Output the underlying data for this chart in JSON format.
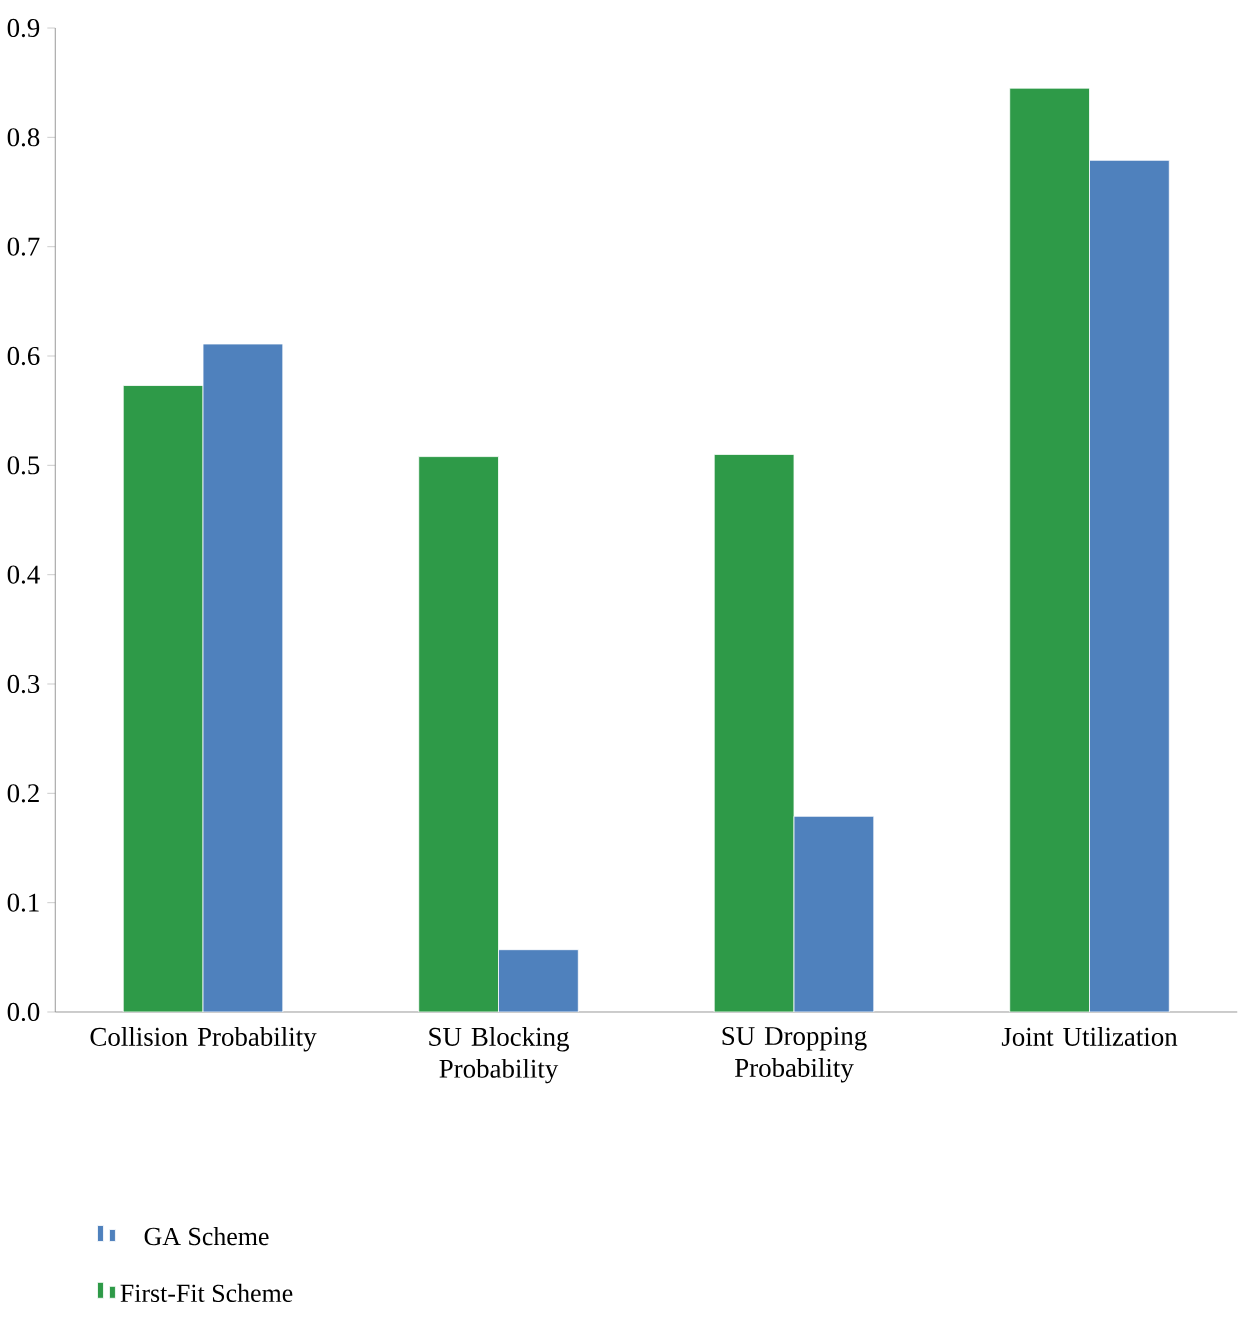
{
  "chart_data": {
    "type": "bar",
    "categories": [
      "Collision Probability",
      "SU Blocking Probability",
      "SU Dropping Probability",
      "Joint Utilization"
    ],
    "series": [
      {
        "name": "First-Fit Scheme",
        "color": "#2e9a48",
        "values": [
          0.573,
          0.508,
          0.51,
          0.845
        ]
      },
      {
        "name": "GA Scheme",
        "color": "#4f81bd",
        "values": [
          0.611,
          0.057,
          0.179,
          0.779
        ]
      }
    ],
    "ylim": [
      0,
      0.9
    ],
    "yticks": [
      {
        "value": 0,
        "label": "0.0"
      },
      0.1,
      0.2,
      0.3,
      0.4,
      0.5,
      0.6,
      0.7,
      0.8,
      0.9
    ],
    "grid": false,
    "legend": "bottom"
  }
}
